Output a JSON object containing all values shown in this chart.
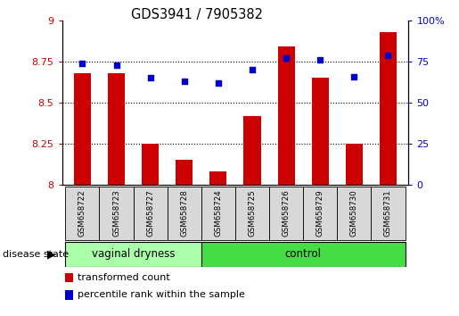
{
  "title": "GDS3941 / 7905382",
  "samples": [
    "GSM658722",
    "GSM658723",
    "GSM658727",
    "GSM658728",
    "GSM658724",
    "GSM658725",
    "GSM658726",
    "GSM658729",
    "GSM658730",
    "GSM658731"
  ],
  "bar_values": [
    8.68,
    8.68,
    8.25,
    8.15,
    8.08,
    8.42,
    8.84,
    8.65,
    8.25,
    8.93
  ],
  "dot_values": [
    74,
    73,
    65,
    63,
    62,
    70,
    77,
    76,
    66,
    79
  ],
  "bar_color": "#cc0000",
  "dot_color": "#0000cc",
  "ymin": 8.0,
  "ymax": 9.0,
  "yticks": [
    8.0,
    8.25,
    8.5,
    8.75,
    9.0
  ],
  "ytick_labels": [
    "8",
    "8.25",
    "8.5",
    "8.75",
    "9"
  ],
  "y2min": 0,
  "y2max": 100,
  "y2ticks": [
    0,
    25,
    50,
    75,
    100
  ],
  "y2tick_labels": [
    "0",
    "25",
    "50",
    "75",
    "100%"
  ],
  "group1_label": "vaginal dryness",
  "group2_label": "control",
  "group1_count": 4,
  "group2_count": 6,
  "disease_state_label": "disease state",
  "legend_bar_label": "transformed count",
  "legend_dot_label": "percentile rank within the sample",
  "group1_color": "#aaffaa",
  "group2_color": "#44dd44",
  "bar_width": 0.5,
  "grid_color": "black",
  "sample_box_color": "#d8d8d8"
}
